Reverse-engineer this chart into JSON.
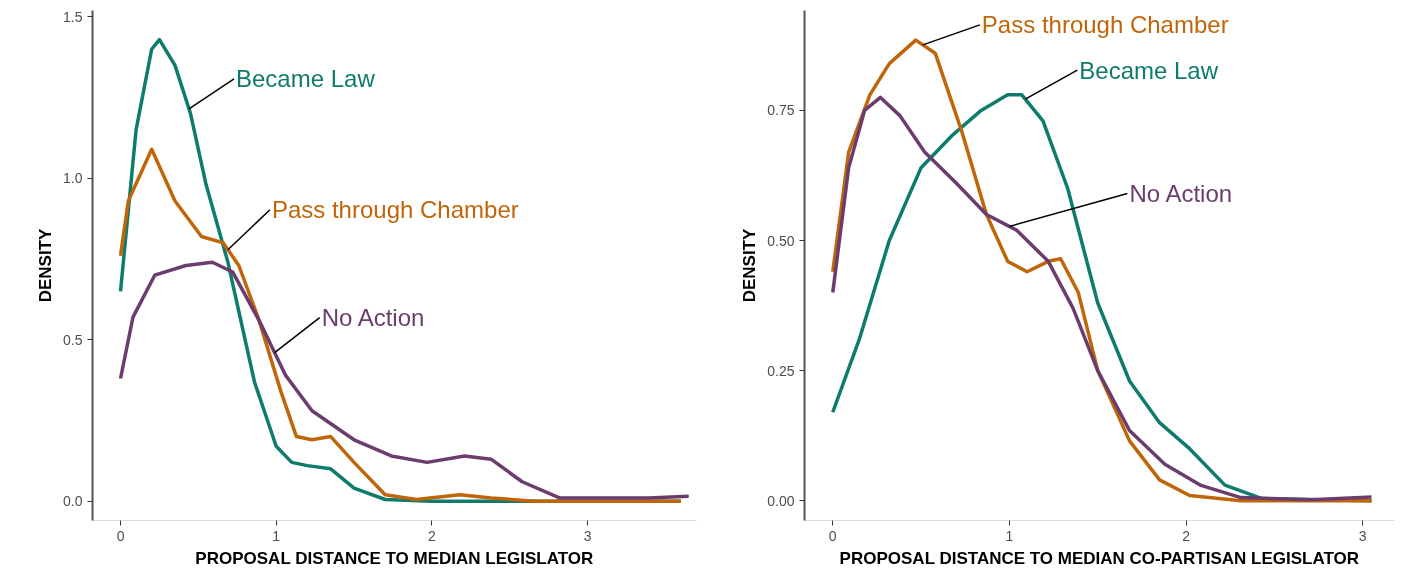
{
  "chart_data": [
    {
      "type": "line",
      "xlabel": "PROPOSAL DISTANCE TO MEDIAN LEGISLATOR",
      "xlim": [
        -0.18,
        3.7
      ],
      "ylabel": "DENSITY",
      "ylim": [
        -0.06,
        1.52
      ],
      "xticks": [
        0,
        1,
        2,
        3
      ],
      "yticks": [
        {
          "value": 0,
          "label": "0.0"
        },
        {
          "value": 0.5,
          "label": "0.5"
        },
        {
          "value": 1,
          "label": "1.0"
        },
        {
          "value": 1.5,
          "label": "1.5"
        }
      ],
      "grid": false,
      "legend": false,
      "line_style": "solid",
      "series": [
        {
          "name": "Became Law",
          "color": "#0e7b6c",
          "x": [
            0,
            0.1,
            0.2,
            0.25,
            0.35,
            0.45,
            0.55,
            0.69,
            0.86,
            1.0,
            1.1,
            1.2,
            1.35,
            1.5,
            1.7,
            2.0,
            2.5,
            3.0,
            3.6
          ],
          "values": [
            0.65,
            1.15,
            1.4,
            1.43,
            1.35,
            1.2,
            0.98,
            0.74,
            0.37,
            0.17,
            0.12,
            0.11,
            0.1,
            0.04,
            0.005,
            0,
            0,
            0,
            0
          ]
        },
        {
          "name": "Pass through Chamber",
          "color": "#c0650a",
          "x": [
            0,
            0.05,
            0.2,
            0.35,
            0.52,
            0.66,
            0.76,
            0.89,
            1.03,
            1.13,
            1.23,
            1.35,
            1.5,
            1.7,
            1.9,
            2.18,
            2.38,
            2.65,
            3.0,
            3.6
          ],
          "values": [
            0.76,
            0.93,
            1.09,
            0.93,
            0.82,
            0.8,
            0.73,
            0.56,
            0.34,
            0.2,
            0.19,
            0.2,
            0.12,
            0.02,
            0.005,
            0.02,
            0.01,
            0,
            0,
            0
          ]
        },
        {
          "name": "No Action",
          "color": "#6b3d6e",
          "x": [
            0,
            0.08,
            0.22,
            0.42,
            0.59,
            0.72,
            0.89,
            1.06,
            1.23,
            1.5,
            1.74,
            1.97,
            2.21,
            2.38,
            2.58,
            2.82,
            3.0,
            3.39,
            3.65
          ],
          "values": [
            0.38,
            0.57,
            0.7,
            0.73,
            0.74,
            0.71,
            0.56,
            0.39,
            0.28,
            0.19,
            0.14,
            0.12,
            0.14,
            0.13,
            0.06,
            0.01,
            0.01,
            0.01,
            0.015
          ]
        }
      ]
    },
    {
      "type": "line",
      "xlabel": "PROPOSAL DISTANCE TO MEDIAN CO-PARTISAN LEGISLATOR",
      "xlim": [
        -0.16,
        3.18
      ],
      "ylabel": "DENSITY",
      "ylim": [
        -0.038,
        0.942
      ],
      "xticks": [
        0,
        1,
        2,
        3
      ],
      "yticks": [
        {
          "value": 0,
          "label": "0.00"
        },
        {
          "value": 0.25,
          "label": "0.25"
        },
        {
          "value": 0.5,
          "label": "0.50"
        },
        {
          "value": 0.75,
          "label": "0.75"
        }
      ],
      "grid": false,
      "legend": false,
      "line_style": "solid",
      "series": [
        {
          "name": "Became Law",
          "color": "#0e7b6c",
          "x": [
            0,
            0.15,
            0.32,
            0.5,
            0.67,
            0.84,
            0.99,
            1.07,
            1.19,
            1.33,
            1.5,
            1.68,
            1.85,
            2.02,
            2.22,
            2.43,
            3.05
          ],
          "values": [
            0.17,
            0.31,
            0.5,
            0.64,
            0.7,
            0.75,
            0.78,
            0.78,
            0.73,
            0.6,
            0.38,
            0.23,
            0.15,
            0.1,
            0.03,
            0.004,
            0
          ]
        },
        {
          "name": "Pass through Chamber",
          "color": "#c0650a",
          "x": [
            0,
            0.09,
            0.21,
            0.32,
            0.47,
            0.58,
            0.73,
            0.87,
            0.99,
            1.1,
            1.22,
            1.29,
            1.39,
            1.5,
            1.68,
            1.85,
            2.02,
            2.31,
            3.05
          ],
          "values": [
            0.44,
            0.67,
            0.78,
            0.84,
            0.885,
            0.86,
            0.71,
            0.55,
            0.46,
            0.44,
            0.46,
            0.465,
            0.4,
            0.25,
            0.115,
            0.04,
            0.01,
            0,
            0
          ]
        },
        {
          "name": "No Action",
          "color": "#6b3d6e",
          "x": [
            0,
            0.09,
            0.18,
            0.27,
            0.38,
            0.52,
            0.7,
            0.87,
            1.04,
            1.22,
            1.36,
            1.5,
            1.68,
            1.88,
            2.08,
            2.31,
            2.71,
            3.05
          ],
          "values": [
            0.4,
            0.64,
            0.75,
            0.775,
            0.74,
            0.67,
            0.61,
            0.55,
            0.52,
            0.46,
            0.37,
            0.25,
            0.135,
            0.07,
            0.03,
            0.006,
            0.002,
            0.007
          ]
        }
      ]
    }
  ]
}
